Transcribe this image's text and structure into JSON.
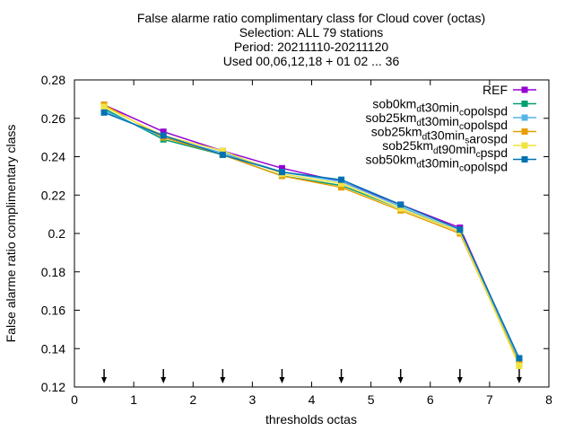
{
  "title_lines": [
    "False alarme ratio complimentary class  for Cloud cover (octas)",
    "Selection: ALL     79 stations",
    "Period: 20211110-20211120",
    "Used 00,06,12,18 + 01 02 ... 36"
  ],
  "chart_data": {
    "type": "line",
    "xlabel": "thresholds octas",
    "ylabel": "False alarme ratio complimentary class",
    "xlim": [
      0,
      8
    ],
    "ylim": [
      0.12,
      0.28
    ],
    "xticks": [
      0,
      1,
      2,
      3,
      4,
      5,
      6,
      7,
      8
    ],
    "xtick_labels": [
      "0",
      "1",
      "2",
      "3",
      "4",
      "5",
      "6",
      "7",
      "8"
    ],
    "yticks": [
      0.12,
      0.14,
      0.16,
      0.18,
      0.2,
      0.22,
      0.24,
      0.26,
      0.28
    ],
    "ytick_labels": [
      "0.12",
      "0.14",
      "0.16",
      "0.18",
      "0.2",
      "0.22",
      "0.24",
      "0.26",
      "0.28"
    ],
    "grid": false,
    "legend_position": "top-right",
    "x": [
      0.5,
      1.5,
      2.5,
      3.5,
      4.5,
      5.5,
      6.5,
      7.5
    ],
    "arrow_markers_x": [
      0.5,
      1.5,
      2.5,
      3.5,
      4.5,
      5.5,
      6.5,
      7.5
    ],
    "series": [
      {
        "name": "REF",
        "legend": [
          {
            "t": "REF"
          }
        ],
        "color": "#9400d3",
        "marker": "square",
        "values": [
          0.267,
          0.253,
          0.243,
          0.234,
          0.227,
          0.215,
          0.203,
          0.134
        ]
      },
      {
        "name": "sob0km_dt30min_copolspd",
        "legend": [
          {
            "t": "sob0km"
          },
          {
            "t": "d",
            "sub": true
          },
          {
            "t": "t30min"
          },
          {
            "t": "c",
            "sub": true
          },
          {
            "t": "opolspd"
          }
        ],
        "color": "#009e73",
        "marker": "square",
        "values": [
          0.265,
          0.249,
          0.241,
          0.23,
          0.225,
          0.213,
          0.201,
          0.134
        ]
      },
      {
        "name": "sob25km_dt30min_copolspd",
        "legend": [
          {
            "t": "sob25km"
          },
          {
            "t": "d",
            "sub": true
          },
          {
            "t": "t30min"
          },
          {
            "t": "c",
            "sub": true
          },
          {
            "t": "opolspd"
          }
        ],
        "color": "#56b4e9",
        "marker": "square",
        "values": [
          0.264,
          0.25,
          0.242,
          0.232,
          0.227,
          0.214,
          0.201,
          0.134
        ]
      },
      {
        "name": "sob25km_dt30min_sarospd",
        "legend": [
          {
            "t": "sob25km"
          },
          {
            "t": "d",
            "sub": true
          },
          {
            "t": "t30min"
          },
          {
            "t": "s",
            "sub": true
          },
          {
            "t": "arospd"
          }
        ],
        "color": "#e69f00",
        "marker": "square",
        "values": [
          0.267,
          0.25,
          0.241,
          0.23,
          0.224,
          0.212,
          0.2,
          0.132
        ]
      },
      {
        "name": "sob25km_dt90min_cpspd",
        "legend": [
          {
            "t": "sob25km"
          },
          {
            "t": "d",
            "sub": true
          },
          {
            "t": "t90min"
          },
          {
            "t": "c",
            "sub": true
          },
          {
            "t": "pspd"
          }
        ],
        "color": "#f0e442",
        "marker": "square",
        "values": [
          0.266,
          0.251,
          0.243,
          0.231,
          0.226,
          0.213,
          0.201,
          0.131
        ]
      },
      {
        "name": "sob50km_dt30min_copolspd",
        "legend": [
          {
            "t": "sob50km"
          },
          {
            "t": "d",
            "sub": true
          },
          {
            "t": "t30min"
          },
          {
            "t": "c",
            "sub": true
          },
          {
            "t": "opolspd"
          }
        ],
        "color": "#0072b2",
        "marker": "square",
        "values": [
          0.263,
          0.251,
          0.241,
          0.232,
          0.228,
          0.215,
          0.202,
          0.135
        ]
      }
    ]
  }
}
